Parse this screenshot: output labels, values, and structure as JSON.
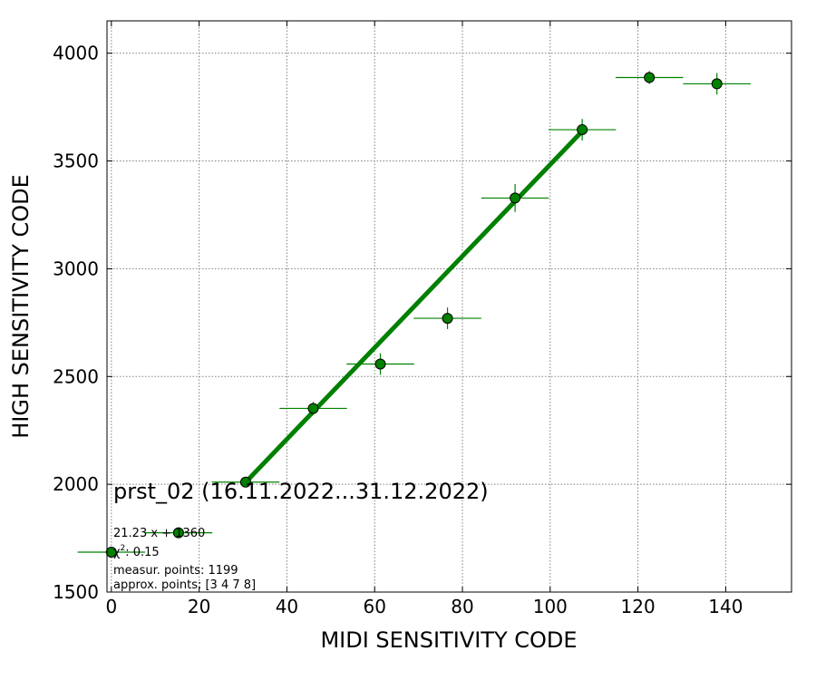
{
  "chart_data": {
    "type": "scatter",
    "xlabel": "MIDI SENSITIVITY CODE",
    "ylabel": "HIGH SENSITIVITY CODE",
    "xlim": [
      -1,
      155
    ],
    "ylim": [
      1500,
      4150
    ],
    "xticks": [
      0,
      20,
      40,
      60,
      80,
      100,
      120,
      140
    ],
    "yticks": [
      1500,
      2000,
      2500,
      3000,
      3500,
      4000
    ],
    "grid": true,
    "series_color": "#008000",
    "points": [
      {
        "x": 0,
        "y": 1685,
        "xerr": 7.7,
        "yerr": 15
      },
      {
        "x": 15.3,
        "y": 1775,
        "xerr": 7.7,
        "yerr": 15
      },
      {
        "x": 30.6,
        "y": 2010,
        "xerr": 7.7,
        "yerr": 15
      },
      {
        "x": 46,
        "y": 2352,
        "xerr": 7.7,
        "yerr": 30
      },
      {
        "x": 61.3,
        "y": 2558,
        "xerr": 7.7,
        "yerr": 50
      },
      {
        "x": 76.6,
        "y": 2770,
        "xerr": 7.7,
        "yerr": 50
      },
      {
        "x": 92,
        "y": 3328,
        "xerr": 7.7,
        "yerr": 65
      },
      {
        "x": 107.3,
        "y": 3645,
        "xerr": 7.7,
        "yerr": 50
      },
      {
        "x": 122.6,
        "y": 3887,
        "xerr": 7.7,
        "yerr": 30
      },
      {
        "x": 138,
        "y": 3858,
        "xerr": 7.7,
        "yerr": 50
      }
    ],
    "fit_line": {
      "x_start": 30.6,
      "x_end": 107.3,
      "slope": 21.23,
      "intercept": 1360
    },
    "annotations": {
      "title_text": "prst_02 (16.11.2022...31.12.2022)",
      "fit_text": "21.23 x + 1360",
      "chi2_prefix": "χ",
      "chi2_sup": "2",
      "chi2_value": ": 0.15",
      "measur_text": "measur. points: 1199",
      "approx_text": "approx. points: [3 4 7 8]"
    }
  }
}
